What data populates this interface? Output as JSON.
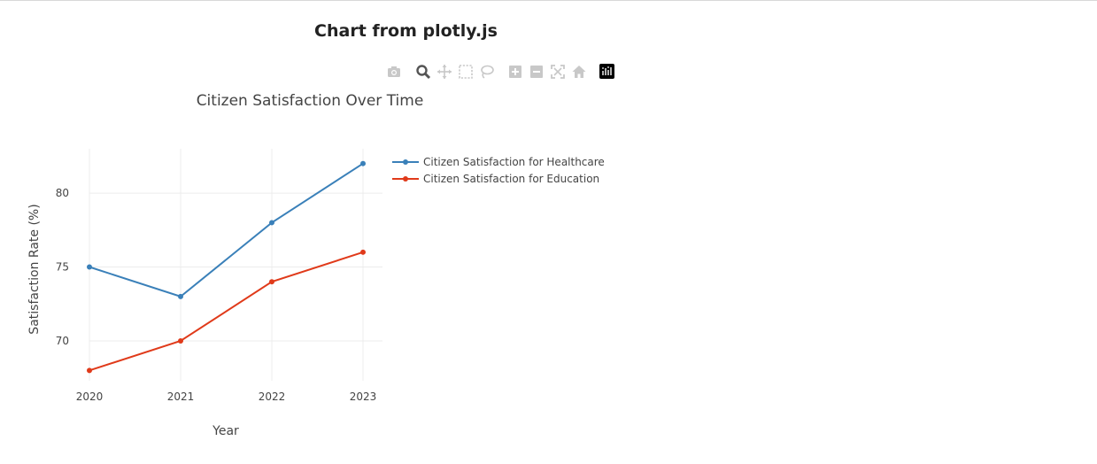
{
  "page": {
    "title": "Chart from plotly.js"
  },
  "modebar": {
    "icons": [
      "camera-icon",
      "zoom-icon",
      "pan-icon",
      "box-select-icon",
      "lasso-select-icon",
      "zoom-in-icon",
      "zoom-out-icon",
      "autoscale-icon",
      "reset-axes-icon",
      "plotly-logo-icon"
    ]
  },
  "chart_data": {
    "type": "line",
    "title": "Citizen Satisfaction Over Time",
    "xlabel": "Year",
    "ylabel": "Satisfaction Rate (%)",
    "x": [
      "2020",
      "2021",
      "2022",
      "2023"
    ],
    "yticks": [
      70,
      75,
      80
    ],
    "ylim": [
      67.3,
      83
    ],
    "grid": true,
    "legend_position": "right",
    "series": [
      {
        "name": "Citizen Satisfaction for Healthcare",
        "values": [
          75,
          73,
          78,
          82
        ],
        "color": "#3a80b9"
      },
      {
        "name": "Citizen Satisfaction for Education",
        "values": [
          68,
          70,
          74,
          76
        ],
        "color": "#e03a1a"
      }
    ]
  }
}
